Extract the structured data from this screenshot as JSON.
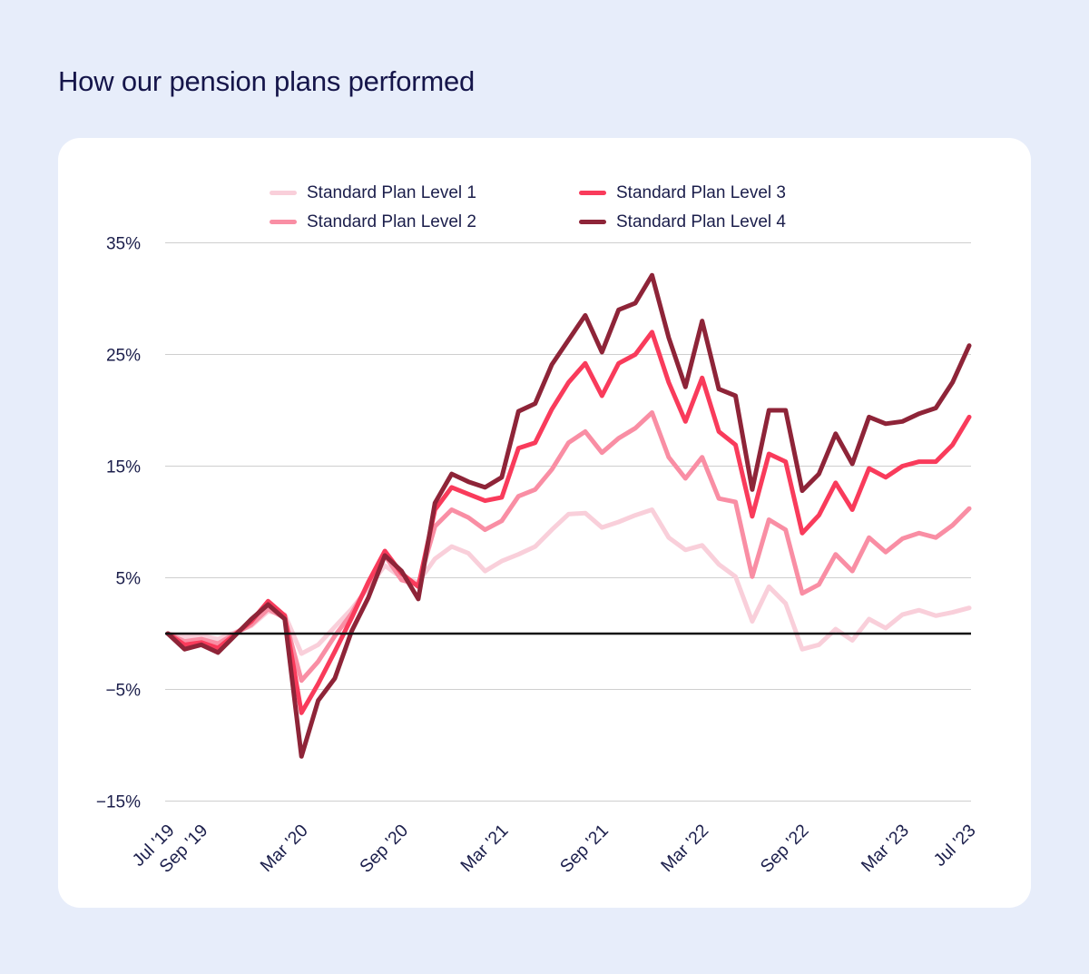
{
  "page": {
    "title": "How our pension plans performed"
  },
  "colors": {
    "page_background": "#E7EDFA",
    "card_background": "#FFFFFF",
    "title_text": "#15154A",
    "axis_text": "#1B1E4B",
    "gridline": "#CFCFCF",
    "zero_line": "#111111"
  },
  "chart_data": {
    "type": "line",
    "title": "",
    "xlabel": "",
    "ylabel": "",
    "ylim": [
      -15,
      35
    ],
    "grid": "horizontal",
    "legend_position": "top",
    "yticks": [
      35,
      25,
      15,
      5,
      -5,
      -15
    ],
    "ytick_labels": [
      "35%",
      "25%",
      "15%",
      "5%",
      "−5%",
      "−15%"
    ],
    "zero_line": 0,
    "categories": [
      "Jul '19",
      "Aug '19",
      "Sep '19",
      "Oct '19",
      "Nov '19",
      "Dec '19",
      "Jan '20",
      "Feb '20",
      "Mar '20",
      "Apr '20",
      "May '20",
      "Jun '20",
      "Jul '20",
      "Aug '20",
      "Sep '20",
      "Oct '20",
      "Nov '20",
      "Dec '20",
      "Jan '21",
      "Feb '21",
      "Mar '21",
      "Apr '21",
      "May '21",
      "Jun '21",
      "Jul '21",
      "Aug '21",
      "Sep '21",
      "Oct '21",
      "Nov '21",
      "Dec '21",
      "Jan '22",
      "Feb '22",
      "Mar '22",
      "Apr '22",
      "May '22",
      "Jun '22",
      "Jul '22",
      "Aug '22",
      "Sep '22",
      "Oct '22",
      "Nov '22",
      "Dec '22",
      "Jan '23",
      "Feb '23",
      "Mar '23",
      "Apr '23",
      "May '23",
      "Jun '23",
      "Jul '23"
    ],
    "xtick_indices": [
      0,
      2,
      8,
      14,
      20,
      26,
      32,
      38,
      44,
      48
    ],
    "series": [
      {
        "name": "Standard Plan Level 1",
        "color": "#F9CFDA",
        "values": [
          0,
          -0.3,
          -0.2,
          -0.5,
          0.1,
          0.7,
          2.0,
          1.7,
          -1.8,
          -1.0,
          0.6,
          2.2,
          4.1,
          6.1,
          5.0,
          4.6,
          6.7,
          7.8,
          7.2,
          5.6,
          6.5,
          7.1,
          7.8,
          9.3,
          10.7,
          10.8,
          9.5,
          10.0,
          10.6,
          11.1,
          8.6,
          7.5,
          7.9,
          6.2,
          5.1,
          1.1,
          4.2,
          2.7,
          -1.4,
          -1.0,
          0.4,
          -0.6,
          1.3,
          0.5,
          1.7,
          2.1,
          1.6,
          1.9,
          2.3
        ]
      },
      {
        "name": "Standard Plan Level 2",
        "color": "#F98EA4",
        "values": [
          0,
          -0.7,
          -0.5,
          -0.9,
          0,
          0.8,
          2.2,
          1.4,
          -4.2,
          -2.5,
          -0.2,
          1.8,
          4.4,
          7.0,
          4.8,
          4.4,
          9.6,
          11.1,
          10.4,
          9.3,
          10.1,
          12.3,
          12.9,
          14.7,
          17.1,
          18.1,
          16.2,
          17.5,
          18.4,
          19.8,
          15.8,
          13.9,
          15.8,
          12.1,
          11.8,
          5.1,
          10.2,
          9.3,
          3.6,
          4.4,
          7.1,
          5.6,
          8.6,
          7.3,
          8.5,
          9.0,
          8.6,
          9.7,
          11.2
        ]
      },
      {
        "name": "Standard Plan Level 3",
        "color": "#F93B5B",
        "values": [
          0,
          -1.0,
          -0.8,
          -1.3,
          -0.1,
          1.1,
          2.9,
          1.6,
          -7.1,
          -4.5,
          -1.6,
          1.4,
          4.6,
          7.4,
          5.4,
          4.2,
          11.1,
          13.1,
          12.5,
          11.9,
          12.2,
          16.6,
          17.1,
          20.1,
          22.5,
          24.2,
          21.3,
          24.2,
          25.0,
          27.0,
          22.5,
          19.0,
          22.9,
          18.1,
          16.9,
          10.5,
          16.1,
          15.4,
          9.0,
          10.6,
          13.5,
          11.1,
          14.8,
          14.0,
          15.0,
          15.4,
          15.4,
          16.9,
          19.4
        ]
      },
      {
        "name": "Standard Plan Level 4",
        "color": "#8E2438",
        "values": [
          0,
          -1.4,
          -1.0,
          -1.7,
          -0.2,
          1.3,
          2.6,
          1.3,
          -11.0,
          -6.0,
          -4.0,
          0.2,
          3.2,
          7.0,
          5.6,
          3.1,
          11.7,
          14.3,
          13.6,
          13.1,
          14.0,
          19.9,
          20.6,
          24.1,
          26.3,
          28.5,
          25.2,
          29.0,
          29.6,
          32.1,
          26.5,
          22.1,
          28.0,
          21.9,
          21.3,
          12.9,
          20.0,
          20.0,
          12.8,
          14.3,
          17.9,
          15.2,
          19.4,
          18.8,
          19.0,
          19.7,
          20.2,
          22.5,
          25.8
        ]
      }
    ]
  }
}
